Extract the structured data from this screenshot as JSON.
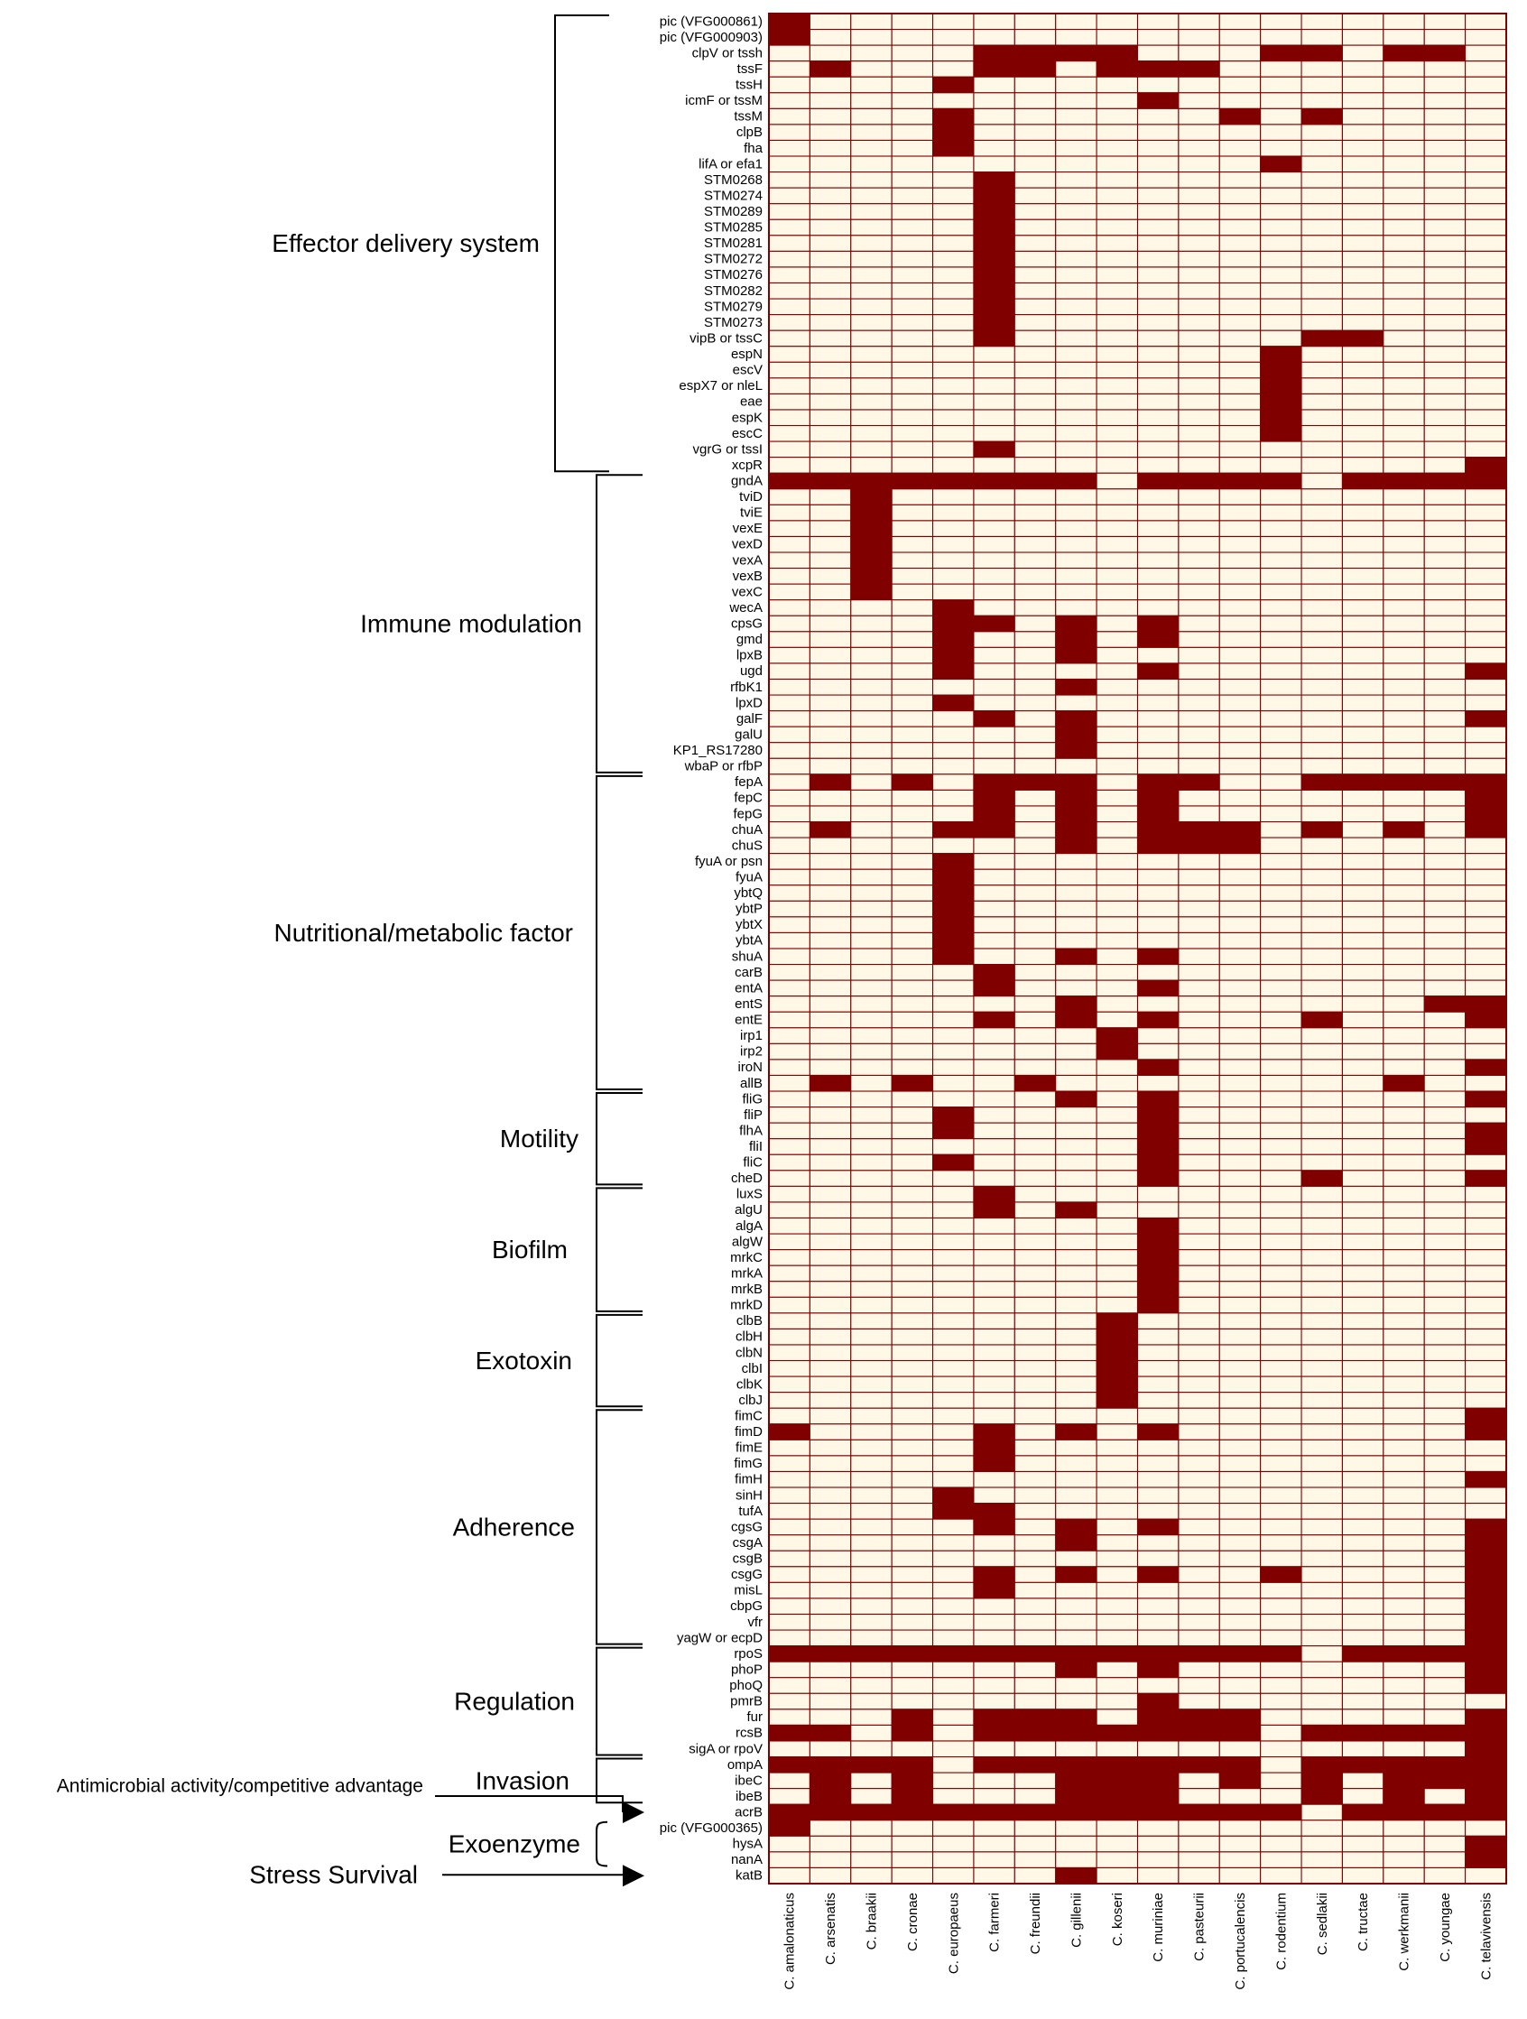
{
  "chart_data": {
    "type": "heatmap",
    "colors": {
      "present": "#800000",
      "absent": "#fff8e7",
      "grid": "#800000"
    },
    "species": [
      "C. amalonaticus",
      "C. arsenatis",
      "C. braakii",
      "C. cronae",
      "C. europaeus",
      "C. farmeri",
      "C. freundii",
      "C. gillenii",
      "C. koseri",
      "C. muriniae",
      "C. pasteurii",
      "C. portucalencis",
      "C. rodentium",
      "C. sedlakii",
      "C. tructae",
      "C. werkmanii",
      "C. youngae",
      "C. telavivensis"
    ],
    "genes": [
      "pic (VFG000861)",
      "pic (VFG000903)",
      "clpV or tssh",
      "tssF",
      "tssH",
      "icmF or tssM",
      "tssM",
      "clpB",
      "fha",
      "lifA or efa1",
      "STM0268",
      "STM0274",
      "STM0289",
      "STM0285",
      "STM0281",
      "STM0272",
      "STM0276",
      "STM0282",
      "STM0279",
      "STM0273",
      "vipB or tssC",
      "espN",
      "escV",
      "espX7 or nleL",
      "eae",
      "espK",
      "escC",
      "vgrG or tssI",
      "xcpR",
      "gndA",
      "tviD",
      "tviE",
      "vexE",
      "vexD",
      "vexA",
      "vexB",
      "vexC",
      "wecA",
      "cpsG",
      "gmd",
      "lpxB",
      "ugd",
      "rfbK1",
      "lpxD",
      "galF",
      "galU",
      "KP1_RS17280",
      "wbaP or rfbP",
      "fepA",
      "fepC",
      "fepG",
      "chuA",
      "chuS",
      "fyuA or psn",
      "fyuA",
      "ybtQ",
      "ybtP",
      "ybtX",
      "ybtA",
      "shuA",
      "carB",
      "entA",
      "entS",
      "entE",
      "irp1",
      "irp2",
      "iroN",
      "allB",
      "fliG",
      "fliP",
      "flhA",
      "fliI",
      "fliC",
      "cheD",
      "luxS",
      "algU",
      "algA",
      "algW",
      "mrkC",
      "mrkA",
      "mrkB",
      "mrkD",
      "clbB",
      "clbH",
      "clbN",
      "clbI",
      "clbK",
      "clbJ",
      "fimC",
      "fimD",
      "fimE",
      "fimG",
      "fimH",
      "sinH",
      "tufA",
      "cgsG",
      "csgA",
      "csgB",
      "csgG",
      "misL",
      "cbpG",
      "vfr",
      "yagW or ecpD",
      "rpoS",
      "phoP",
      "phoQ",
      "pmrB",
      "fur",
      "rcsB",
      "sigA or rpoV",
      "ompA",
      "ibeC",
      "ibeB",
      "acrB",
      "pic (VFG000365)",
      "hysA",
      "nanA",
      "katB"
    ],
    "matrix": [
      "100000000000000000",
      "100000000000000000",
      "000001111000110110",
      "010001101110000000",
      "000010000000000000",
      "000000000100000000",
      "000010000001010000",
      "000010000000000000",
      "000010000000000000",
      "000000000000100000",
      "000001000000000000",
      "000001000000000000",
      "000001000000000000",
      "000001000000000000",
      "000001000000000000",
      "000001000000000000",
      "000001000000000000",
      "000001000000000000",
      "000001000000000000",
      "000001000000000000",
      "000001000000011000",
      "000000000000100000",
      "000000000000100000",
      "000000000000100000",
      "000000000000100000",
      "000000000000100000",
      "000000000000100000",
      "000001000000000000",
      "000000000000000001",
      "111111110111101111",
      "001000000000000000",
      "001000000000000000",
      "001000000000000000",
      "001000000000000000",
      "001000000000000000",
      "001000000000000000",
      "001000000000000000",
      "000010000000000000",
      "000011010100000000",
      "000010010100000000",
      "000010010000000000",
      "000010000100000001",
      "000000010000000000",
      "000010000000000000",
      "000001010000000001",
      "000000010000000000",
      "000000010000000000",
      "000000000000000000",
      "010101110110011111",
      "000001010100000001",
      "000001010100000001",
      "010011010111010101",
      "000000010111000000",
      "000010000000000000",
      "000010000000000000",
      "000010000000000000",
      "000010000000000000",
      "000010000000000000",
      "000010000000000000",
      "000010010100000000",
      "000001000000000000",
      "000001000100000000",
      "000000010000000011",
      "000001010100010001",
      "000000001000000000",
      "000000001000000000",
      "000000000100000001",
      "010100100000000100",
      "000000010100000001",
      "000010000100000000",
      "000010000100000001",
      "000000000100000001",
      "000010000100000000",
      "000000000100010001",
      "000001000000000000",
      "000001010000000000",
      "000000000100000000",
      "000000000100000000",
      "000000000100000000",
      "000000000100000000",
      "000000000100000000",
      "000000000100000000",
      "000000001000000000",
      "000000001000000000",
      "000000001000000000",
      "000000001000000000",
      "000000001000000000",
      "000000001000000000",
      "000000000000000001",
      "100001010100000001",
      "000001000000000000",
      "000001000000000000",
      "000000000000000001",
      "000010000000000000",
      "000011000000000000",
      "000001010100000001",
      "000000010000000001",
      "000000000000000001",
      "000001010100100001",
      "000001000000000001",
      "000000000000000001",
      "000000000000000001",
      "000000000000000001",
      "111111111111101111",
      "000000010100000001",
      "000000000000000001",
      "000000000100000000",
      "000101110111000001",
      "110101111111011111",
      "000000000000000001",
      "111101111111011111",
      "010100011101010111",
      "010100011100010101",
      "111111111111101111",
      "100000000000000000",
      "000000000000000001",
      "000000000000000001",
      "000000010000000000"
    ],
    "categories": [
      {
        "name": "Effector delivery system",
        "start": 0,
        "end": 28
      },
      {
        "name": "Immune modulation",
        "start": 29,
        "end": 47
      },
      {
        "name": "Nutritional/metabolic factor",
        "start": 48,
        "end": 67
      },
      {
        "name": "Motility",
        "start": 68,
        "end": 73
      },
      {
        "name": "Biofilm",
        "start": 74,
        "end": 81
      },
      {
        "name": "Exotoxin",
        "start": 82,
        "end": 87
      },
      {
        "name": "Adherence",
        "start": 88,
        "end": 102
      },
      {
        "name": "Regulation",
        "start": 103,
        "end": 109
      },
      {
        "name": "Invasion",
        "start": 110,
        "end": 112
      },
      {
        "name": "Exoenzyme",
        "start": 114,
        "end": 116
      }
    ],
    "arrow_categories": [
      {
        "name": "Antimicrobial activity/competitive advantage",
        "row": 113
      },
      {
        "name": "Stress Survival",
        "row": 117
      }
    ]
  }
}
